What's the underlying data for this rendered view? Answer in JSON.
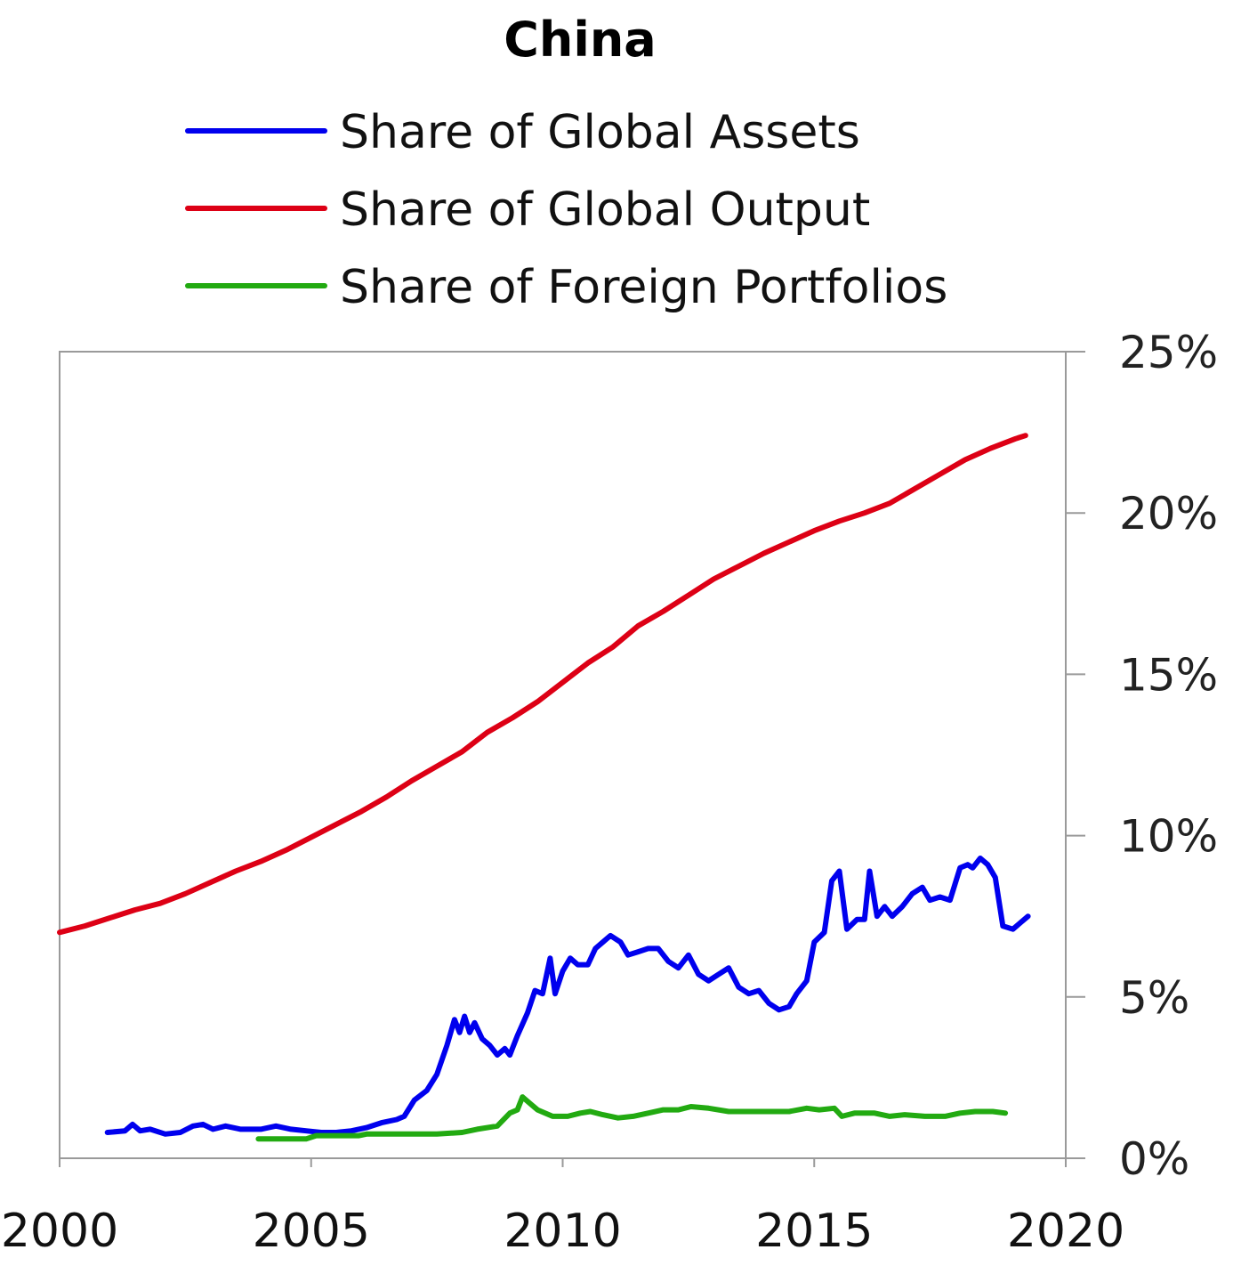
{
  "chart_data": {
    "type": "line",
    "title": "China",
    "xlabel": "",
    "ylabel": "",
    "xlim": [
      2000,
      2020
    ],
    "ylim": [
      0,
      25
    ],
    "x_ticks": [
      2000,
      2005,
      2010,
      2015,
      2020
    ],
    "x_tick_labels": [
      "2000",
      "2005",
      "2010",
      "2015",
      "2020"
    ],
    "y_ticks": [
      0,
      5,
      10,
      15,
      20,
      25
    ],
    "y_tick_labels": [
      "0%",
      "5%",
      "10%",
      "15%",
      "20%",
      "25%"
    ],
    "y_axis_side": "right",
    "grid": false,
    "legend_position": "top-center",
    "series": [
      {
        "name": "Share of Global Assets",
        "color": "#0000ee",
        "points": [
          [
            2000.95,
            0.8
          ],
          [
            2001.3,
            0.85
          ],
          [
            2001.45,
            1.05
          ],
          [
            2001.6,
            0.85
          ],
          [
            2001.8,
            0.9
          ],
          [
            2002.1,
            0.75
          ],
          [
            2002.4,
            0.8
          ],
          [
            2002.65,
            1.0
          ],
          [
            2002.85,
            1.05
          ],
          [
            2003.05,
            0.9
          ],
          [
            2003.3,
            1.0
          ],
          [
            2003.6,
            0.9
          ],
          [
            2004.0,
            0.9
          ],
          [
            2004.3,
            1.0
          ],
          [
            2004.6,
            0.9
          ],
          [
            2004.9,
            0.85
          ],
          [
            2005.2,
            0.8
          ],
          [
            2005.5,
            0.8
          ],
          [
            2005.8,
            0.85
          ],
          [
            2006.1,
            0.95
          ],
          [
            2006.4,
            1.1
          ],
          [
            2006.7,
            1.2
          ],
          [
            2006.85,
            1.3
          ],
          [
            2007.05,
            1.8
          ],
          [
            2007.3,
            2.1
          ],
          [
            2007.5,
            2.6
          ],
          [
            2007.7,
            3.5
          ],
          [
            2007.85,
            4.3
          ],
          [
            2007.95,
            3.9
          ],
          [
            2008.05,
            4.4
          ],
          [
            2008.15,
            3.9
          ],
          [
            2008.25,
            4.2
          ],
          [
            2008.4,
            3.7
          ],
          [
            2008.55,
            3.5
          ],
          [
            2008.7,
            3.2
          ],
          [
            2008.85,
            3.4
          ],
          [
            2008.95,
            3.2
          ],
          [
            2009.1,
            3.8
          ],
          [
            2009.3,
            4.5
          ],
          [
            2009.45,
            5.2
          ],
          [
            2009.6,
            5.1
          ],
          [
            2009.75,
            6.2
          ],
          [
            2009.85,
            5.1
          ],
          [
            2010.0,
            5.8
          ],
          [
            2010.15,
            6.2
          ],
          [
            2010.3,
            6.0
          ],
          [
            2010.5,
            6.0
          ],
          [
            2010.65,
            6.5
          ],
          [
            2010.8,
            6.7
          ],
          [
            2010.95,
            6.9
          ],
          [
            2011.15,
            6.7
          ],
          [
            2011.3,
            6.3
          ],
          [
            2011.5,
            6.4
          ],
          [
            2011.7,
            6.5
          ],
          [
            2011.9,
            6.5
          ],
          [
            2012.1,
            6.1
          ],
          [
            2012.3,
            5.9
          ],
          [
            2012.5,
            6.3
          ],
          [
            2012.7,
            5.7
          ],
          [
            2012.9,
            5.5
          ],
          [
            2013.1,
            5.7
          ],
          [
            2013.3,
            5.9
          ],
          [
            2013.5,
            5.3
          ],
          [
            2013.7,
            5.1
          ],
          [
            2013.9,
            5.2
          ],
          [
            2014.1,
            4.8
          ],
          [
            2014.3,
            4.6
          ],
          [
            2014.5,
            4.7
          ],
          [
            2014.65,
            5.1
          ],
          [
            2014.85,
            5.5
          ],
          [
            2015.0,
            6.7
          ],
          [
            2015.2,
            7.0
          ],
          [
            2015.35,
            8.6
          ],
          [
            2015.5,
            8.9
          ],
          [
            2015.65,
            7.1
          ],
          [
            2015.85,
            7.4
          ],
          [
            2016.0,
            7.4
          ],
          [
            2016.1,
            8.9
          ],
          [
            2016.25,
            7.5
          ],
          [
            2016.4,
            7.8
          ],
          [
            2016.55,
            7.5
          ],
          [
            2016.75,
            7.8
          ],
          [
            2016.95,
            8.2
          ],
          [
            2017.15,
            8.4
          ],
          [
            2017.3,
            8.0
          ],
          [
            2017.5,
            8.1
          ],
          [
            2017.7,
            8.0
          ],
          [
            2017.9,
            9.0
          ],
          [
            2018.05,
            9.1
          ],
          [
            2018.15,
            9.0
          ],
          [
            2018.3,
            9.3
          ],
          [
            2018.45,
            9.1
          ],
          [
            2018.6,
            8.7
          ],
          [
            2018.75,
            7.2
          ],
          [
            2018.95,
            7.1
          ],
          [
            2019.1,
            7.3
          ],
          [
            2019.25,
            7.5
          ]
        ]
      },
      {
        "name": "Share of Global Output",
        "color": "#dd0015",
        "points": [
          [
            2000.0,
            7.0
          ],
          [
            2000.5,
            7.2
          ],
          [
            2001.0,
            7.45
          ],
          [
            2001.5,
            7.7
          ],
          [
            2002.0,
            7.9
          ],
          [
            2002.5,
            8.2
          ],
          [
            2003.0,
            8.55
          ],
          [
            2003.5,
            8.9
          ],
          [
            2004.0,
            9.2
          ],
          [
            2004.5,
            9.55
          ],
          [
            2005.0,
            9.95
          ],
          [
            2005.5,
            10.35
          ],
          [
            2006.0,
            10.75
          ],
          [
            2006.5,
            11.2
          ],
          [
            2007.0,
            11.7
          ],
          [
            2007.5,
            12.15
          ],
          [
            2008.0,
            12.6
          ],
          [
            2008.5,
            13.2
          ],
          [
            2009.0,
            13.65
          ],
          [
            2009.5,
            14.15
          ],
          [
            2010.0,
            14.75
          ],
          [
            2010.5,
            15.35
          ],
          [
            2011.0,
            15.85
          ],
          [
            2011.5,
            16.5
          ],
          [
            2012.0,
            16.95
          ],
          [
            2012.5,
            17.45
          ],
          [
            2013.0,
            17.95
          ],
          [
            2013.5,
            18.35
          ],
          [
            2014.0,
            18.75
          ],
          [
            2014.5,
            19.1
          ],
          [
            2015.0,
            19.45
          ],
          [
            2015.5,
            19.75
          ],
          [
            2016.0,
            20.0
          ],
          [
            2016.5,
            20.3
          ],
          [
            2017.0,
            20.75
          ],
          [
            2017.5,
            21.2
          ],
          [
            2018.0,
            21.65
          ],
          [
            2018.5,
            22.0
          ],
          [
            2019.0,
            22.3
          ],
          [
            2019.2,
            22.4
          ]
        ]
      },
      {
        "name": "Share of Foreign Portfolios",
        "color": "#22aa11",
        "points": [
          [
            2003.95,
            0.6
          ],
          [
            2004.5,
            0.6
          ],
          [
            2004.9,
            0.6
          ],
          [
            2005.1,
            0.7
          ],
          [
            2005.5,
            0.7
          ],
          [
            2005.95,
            0.7
          ],
          [
            2006.1,
            0.75
          ],
          [
            2006.6,
            0.75
          ],
          [
            2007.0,
            0.75
          ],
          [
            2007.5,
            0.75
          ],
          [
            2008.0,
            0.8
          ],
          [
            2008.3,
            0.9
          ],
          [
            2008.7,
            1.0
          ],
          [
            2008.95,
            1.4
          ],
          [
            2009.1,
            1.5
          ],
          [
            2009.2,
            1.9
          ],
          [
            2009.35,
            1.7
          ],
          [
            2009.5,
            1.5
          ],
          [
            2009.8,
            1.3
          ],
          [
            2010.1,
            1.3
          ],
          [
            2010.35,
            1.4
          ],
          [
            2010.55,
            1.45
          ],
          [
            2010.8,
            1.35
          ],
          [
            2011.1,
            1.25
          ],
          [
            2011.4,
            1.3
          ],
          [
            2011.7,
            1.4
          ],
          [
            2012.0,
            1.5
          ],
          [
            2012.3,
            1.5
          ],
          [
            2012.55,
            1.6
          ],
          [
            2012.9,
            1.55
          ],
          [
            2013.3,
            1.45
          ],
          [
            2013.7,
            1.45
          ],
          [
            2014.1,
            1.45
          ],
          [
            2014.5,
            1.45
          ],
          [
            2014.85,
            1.55
          ],
          [
            2015.1,
            1.5
          ],
          [
            2015.4,
            1.55
          ],
          [
            2015.55,
            1.3
          ],
          [
            2015.8,
            1.4
          ],
          [
            2016.2,
            1.4
          ],
          [
            2016.5,
            1.3
          ],
          [
            2016.8,
            1.35
          ],
          [
            2017.2,
            1.3
          ],
          [
            2017.6,
            1.3
          ],
          [
            2017.9,
            1.4
          ],
          [
            2018.2,
            1.45
          ],
          [
            2018.55,
            1.45
          ],
          [
            2018.8,
            1.4
          ]
        ]
      }
    ]
  }
}
